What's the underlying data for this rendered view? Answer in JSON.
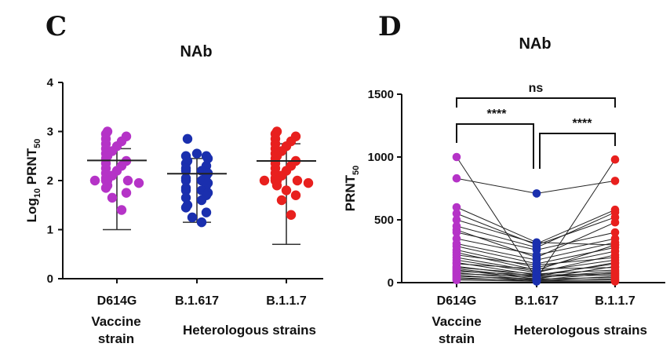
{
  "panels": {
    "c_letter": "C",
    "d_letter": "D"
  },
  "chart_data": [
    {
      "type": "scatter",
      "title": "NAb",
      "ylabel": "Log10 PRNT50",
      "ylabel_main": "Log",
      "ylabel_sub": "10",
      "ylabel_main2": " PRNT",
      "ylabel_sub2": "50",
      "ylim": [
        0,
        4
      ],
      "yticks": [
        0,
        1,
        2,
        3,
        4
      ],
      "categories": [
        "D614G",
        "B.1.617",
        "B.1.1.7"
      ],
      "group_labels": {
        "vaccine_line1": "Vaccine",
        "vaccine_line2": "strain",
        "heterologous": "Heterologous strains"
      },
      "grid": false,
      "colors": [
        "#b533c7",
        "#1a2fae",
        "#e8201e"
      ],
      "series": [
        {
          "category": "D614G",
          "mean": 2.41,
          "low": 1.0,
          "high": 2.65,
          "values": [
            3.0,
            2.95,
            2.9,
            2.85,
            2.8,
            2.75,
            2.7,
            2.65,
            2.6,
            2.55,
            2.5,
            2.45,
            2.4,
            2.35,
            2.3,
            2.25,
            2.2,
            2.15,
            2.1,
            2.05,
            2.0,
            2.0,
            2.0,
            2.0,
            1.95,
            1.9,
            1.85,
            1.75,
            1.65,
            1.4
          ]
        },
        {
          "category": "B.1.617",
          "mean": 2.14,
          "low": 1.15,
          "high": 2.45,
          "values": [
            2.85,
            2.55,
            2.5,
            2.5,
            2.45,
            2.4,
            2.35,
            2.3,
            2.25,
            2.2,
            2.2,
            2.15,
            2.1,
            2.05,
            2.0,
            2.0,
            1.95,
            1.9,
            1.85,
            1.8,
            1.8,
            1.75,
            1.7,
            1.65,
            1.6,
            1.5,
            1.45,
            1.35,
            1.25,
            1.15
          ]
        },
        {
          "category": "B.1.1.7",
          "mean": 2.4,
          "low": 0.7,
          "high": 2.75,
          "values": [
            3.0,
            2.95,
            2.9,
            2.85,
            2.8,
            2.75,
            2.7,
            2.65,
            2.6,
            2.55,
            2.5,
            2.45,
            2.4,
            2.35,
            2.3,
            2.25,
            2.2,
            2.15,
            2.1,
            2.05,
            2.0,
            2.0,
            2.0,
            2.0,
            1.95,
            1.9,
            1.8,
            1.7,
            1.6,
            1.3
          ]
        }
      ]
    },
    {
      "type": "line",
      "title": "NAb",
      "ylabel": "PRNT50",
      "ylabel_main": "PRNT",
      "ylabel_sub": "50",
      "ylim": [
        0,
        1500
      ],
      "yticks": [
        0,
        500,
        1000,
        1500
      ],
      "categories": [
        "D614G",
        "B.1.617",
        "B.1.1.7"
      ],
      "group_labels": {
        "vaccine_line1": "Vaccine",
        "vaccine_line2": "strain",
        "heterologous": "Heterologous strains"
      },
      "grid": false,
      "colors": [
        "#b533c7",
        "#1a2fae",
        "#e8201e"
      ],
      "comparisons": [
        {
          "from": "D614G",
          "to": "B.1.1.7",
          "label": "ns"
        },
        {
          "from": "D614G",
          "to": "B.1.617",
          "label": "****"
        },
        {
          "from": "B.1.617",
          "to": "B.1.1.7",
          "label": "****"
        }
      ],
      "pairs": [
        [
          1000,
          30,
          980
        ],
        [
          830,
          710,
          810
        ],
        [
          600,
          320,
          300
        ],
        [
          550,
          300,
          520
        ],
        [
          500,
          310,
          580
        ],
        [
          450,
          280,
          560
        ],
        [
          420,
          200,
          480
        ],
        [
          400,
          260,
          400
        ],
        [
          350,
          220,
          350
        ],
        [
          310,
          180,
          320
        ],
        [
          290,
          150,
          280
        ],
        [
          260,
          120,
          250
        ],
        [
          240,
          100,
          300
        ],
        [
          220,
          140,
          200
        ],
        [
          200,
          90,
          180
        ],
        [
          180,
          80,
          220
        ],
        [
          160,
          60,
          150
        ],
        [
          150,
          110,
          120
        ],
        [
          130,
          50,
          160
        ],
        [
          120,
          70,
          100
        ],
        [
          110,
          40,
          90
        ],
        [
          100,
          30,
          130
        ],
        [
          90,
          60,
          70
        ],
        [
          80,
          20,
          80
        ],
        [
          70,
          50,
          60
        ],
        [
          60,
          15,
          50
        ],
        [
          50,
          30,
          40
        ],
        [
          40,
          10,
          30
        ],
        [
          30,
          20,
          20
        ],
        [
          20,
          10,
          10
        ]
      ]
    }
  ]
}
